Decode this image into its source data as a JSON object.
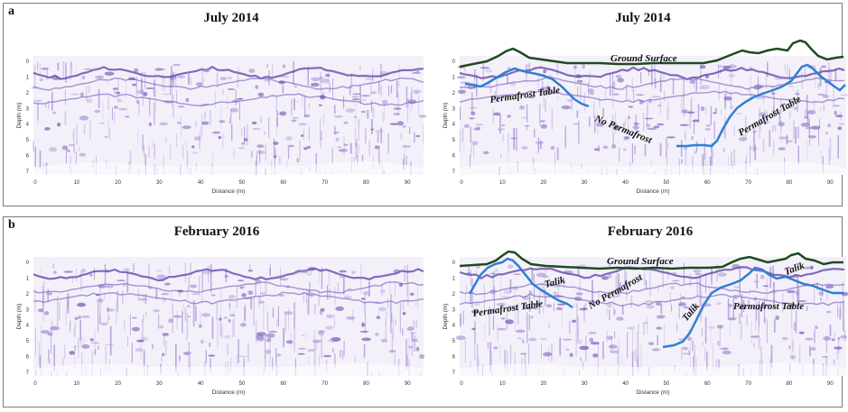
{
  "panels": [
    {
      "letter": "a",
      "left_title": "July 2014",
      "right_title": "July 2014",
      "annotations": {
        "ground_surface": "Ground Surface",
        "permafrost_table_left": "Permafrost Table",
        "no_permafrost": "No Permafrost",
        "permafrost_table_right": "Permafrost Table"
      }
    },
    {
      "letter": "b",
      "left_title": "February 2016",
      "right_title": "February 2016",
      "annotations": {
        "ground_surface": "Ground Surface",
        "permafrost_table_left": "Permafrost Table",
        "talik_1": "Talik",
        "no_permafrost": "No Permafrost",
        "talik_2": "Talik",
        "permafrost_table_right": "Permafrost Table",
        "talik_3": "Talik"
      }
    }
  ],
  "axes": {
    "x_label": "Distance (m)",
    "y_label": "Depth (m)",
    "x_ticks": [
      "0",
      "10",
      "20",
      "30",
      "40",
      "50",
      "60",
      "70",
      "80",
      "90"
    ],
    "y_ticks": [
      "0",
      "1",
      "2",
      "3",
      "4",
      "5",
      "6",
      "7"
    ]
  },
  "colors": {
    "radargram": "#6a4fb0",
    "ground_surface_line": "#1f4a1f",
    "permafrost_line": "#2f7fd0"
  }
}
